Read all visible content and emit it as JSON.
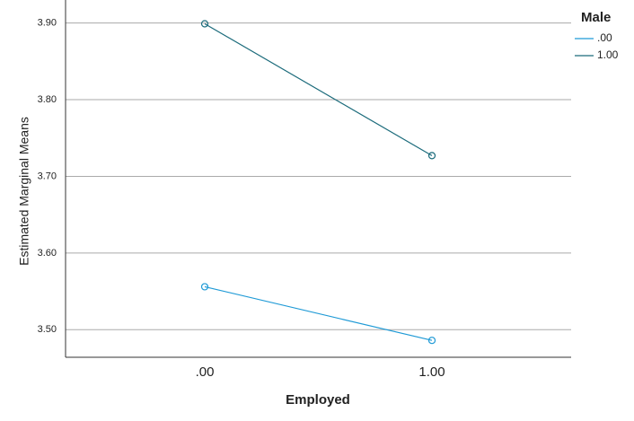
{
  "chart_data": {
    "type": "line",
    "x_label": "Employed",
    "y_label": "Estimated Marginal Means",
    "legend_title": "Male",
    "categories": [
      ".00",
      "1.00"
    ],
    "series": [
      {
        "name": ".00",
        "color": "#1f9ad6",
        "values": [
          3.556,
          3.486
        ]
      },
      {
        "name": "1.00",
        "color": "#1b6b7b",
        "values": [
          3.899,
          3.727
        ]
      }
    ],
    "ylim": [
      3.464,
      3.93
    ],
    "yticks": [
      {
        "value": 3.5,
        "label": "3.50"
      },
      {
        "value": 3.6,
        "label": "3.60"
      },
      {
        "value": 3.7,
        "label": "3.70"
      },
      {
        "value": 3.8,
        "label": "3.80"
      },
      {
        "value": 3.9,
        "label": "3.90"
      }
    ],
    "grid": true,
    "legend": "right"
  }
}
